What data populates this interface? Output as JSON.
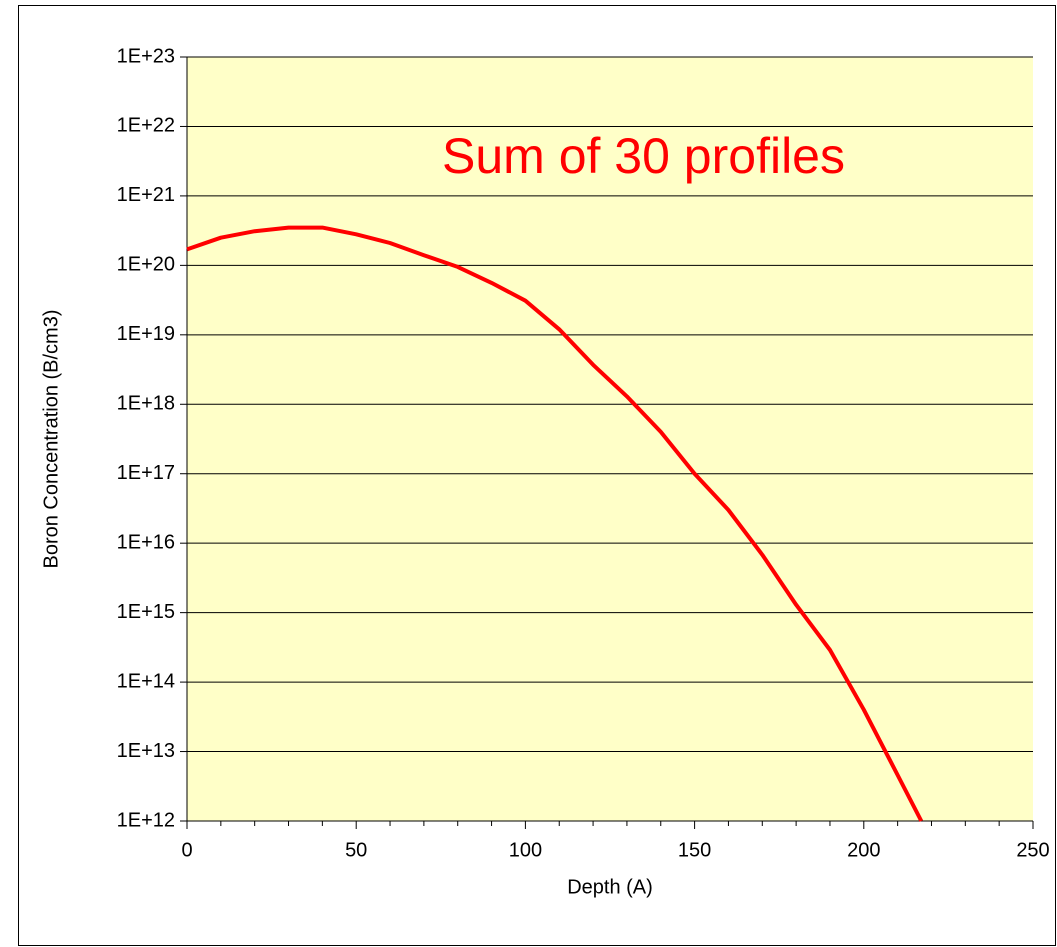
{
  "chart_data": {
    "type": "line",
    "log_y": true,
    "grid": true,
    "annotation": "Sum of 30 profiles",
    "annotation_color": "#ff0000",
    "xlabel": "Depth (A)",
    "ylabel": "Boron Concentration (B/cm3)",
    "background": "#ffffc8",
    "x": [
      0,
      10,
      20,
      30,
      40,
      50,
      60,
      70,
      80,
      90,
      100,
      110,
      120,
      130,
      140,
      150,
      160,
      170,
      180,
      190,
      200,
      210,
      217
    ],
    "series": [
      {
        "name": null,
        "color": "#ff0000",
        "values": [
          1.7e+20,
          2.5e+20,
          3.1e+20,
          3.5e+20,
          3.5e+20,
          2.8e+20,
          2.1e+20,
          1.4e+20,
          9.5e+19,
          5.6e+19,
          3.1e+19,
          1.2e+19,
          3.7e+18,
          1.3e+18,
          4e+17,
          1e+17,
          3e+16,
          6800000000000000.0,
          1300000000000000.0,
          290000000000000.0,
          40000000000000.0,
          4600000000000.0,
          1000000000000.0
        ]
      }
    ],
    "xlim": [
      0,
      250
    ],
    "xticks": [
      0,
      50,
      100,
      150,
      200,
      250
    ],
    "xminorticks": [
      10,
      20,
      30,
      40,
      60,
      70,
      80,
      90,
      110,
      120,
      130,
      140,
      160,
      170,
      180,
      190,
      210,
      220,
      230,
      240
    ],
    "ylim": [
      1000000000000.0,
      1e+23
    ],
    "yticks": [
      {
        "value": 1000000000000.0,
        "label": "1E+12"
      },
      {
        "value": 10000000000000.0,
        "label": "1E+13"
      },
      {
        "value": 100000000000000.0,
        "label": "1E+14"
      },
      {
        "value": 1000000000000000.0,
        "label": "1E+15"
      },
      {
        "value": 1e+16,
        "label": "1E+16"
      },
      {
        "value": 1e+17,
        "label": "1E+17"
      },
      {
        "value": 1e+18,
        "label": "1E+18"
      },
      {
        "value": 1e+19,
        "label": "1E+19"
      },
      {
        "value": 1e+20,
        "label": "1E+20"
      },
      {
        "value": 1e+21,
        "label": "1E+21"
      },
      {
        "value": 1e+22,
        "label": "1E+22"
      },
      {
        "value": 1e+23,
        "label": "1E+23"
      }
    ]
  }
}
